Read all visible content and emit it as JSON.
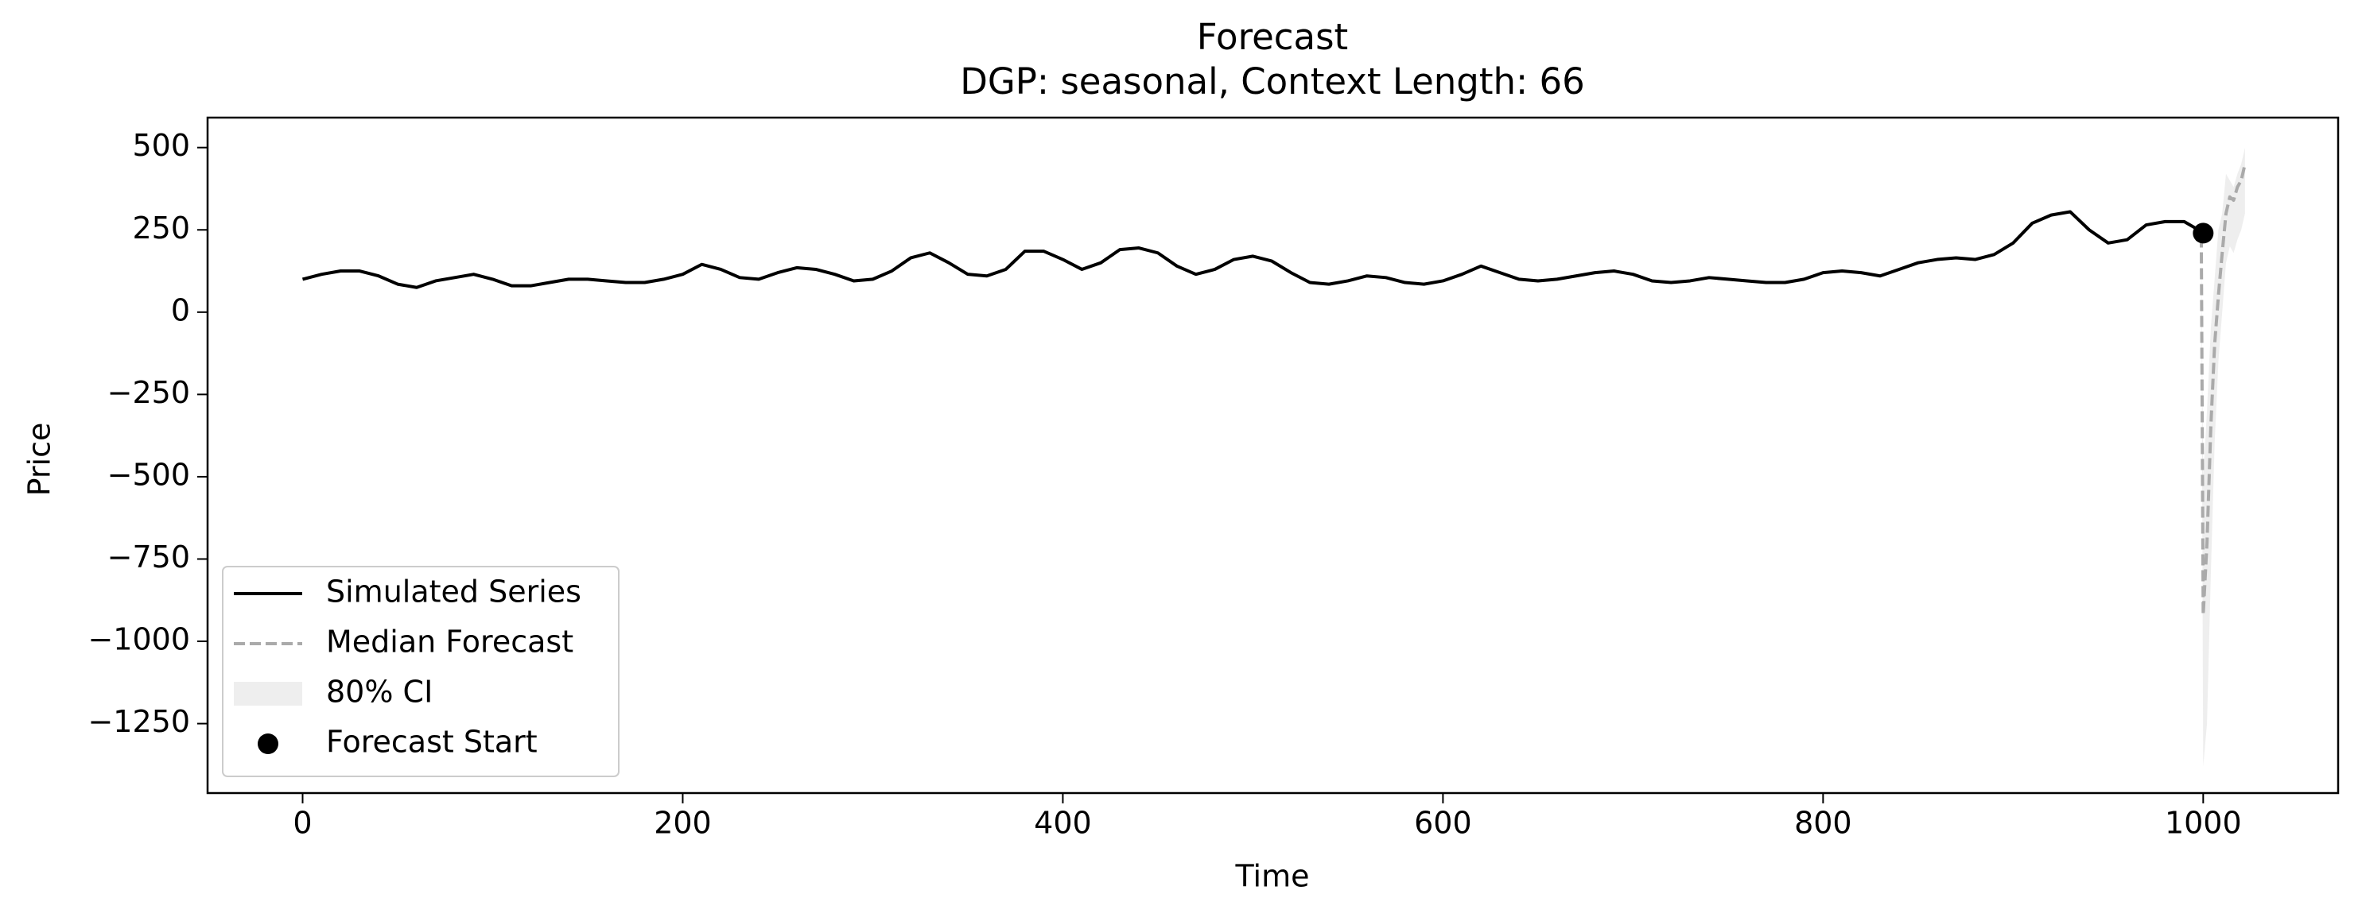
{
  "chart_data": {
    "type": "line",
    "title": "Forecast",
    "subtitle": "DGP: seasonal, Context Length: 66",
    "xlabel": "Time",
    "ylabel": "Price",
    "series": [
      {
        "name": "Simulated Series",
        "color": "#000000",
        "style": "solid",
        "x": [
          0,
          10,
          20,
          30,
          40,
          50,
          60,
          70,
          80,
          90,
          100,
          110,
          120,
          130,
          140,
          150,
          160,
          170,
          180,
          190,
          200,
          210,
          220,
          230,
          240,
          250,
          260,
          270,
          280,
          290,
          300,
          310,
          320,
          330,
          340,
          350,
          360,
          370,
          380,
          390,
          400,
          410,
          420,
          430,
          440,
          450,
          460,
          470,
          480,
          490,
          500,
          510,
          520,
          530,
          540,
          550,
          560,
          570,
          580,
          590,
          600,
          610,
          620,
          630,
          640,
          650,
          660,
          670,
          680,
          690,
          700,
          710,
          720,
          730,
          740,
          750,
          760,
          770,
          780,
          790,
          800,
          810,
          820,
          830,
          840,
          850,
          860,
          870,
          880,
          890,
          900,
          910,
          920,
          930,
          940,
          950,
          960,
          970,
          980,
          990,
          999
        ],
        "values": [
          100,
          115,
          125,
          125,
          110,
          85,
          75,
          95,
          105,
          115,
          100,
          80,
          80,
          90,
          100,
          100,
          95,
          90,
          90,
          100,
          115,
          145,
          130,
          105,
          100,
          120,
          135,
          130,
          115,
          95,
          100,
          125,
          165,
          180,
          150,
          115,
          110,
          130,
          185,
          185,
          160,
          130,
          150,
          190,
          195,
          180,
          140,
          115,
          130,
          160,
          170,
          155,
          120,
          90,
          85,
          95,
          110,
          105,
          90,
          85,
          95,
          115,
          140,
          120,
          100,
          95,
          100,
          110,
          120,
          125,
          115,
          95,
          90,
          95,
          105,
          100,
          95,
          90,
          90,
          100,
          120,
          125,
          120,
          110,
          130,
          150,
          160,
          165,
          160,
          175,
          210,
          270,
          295,
          305,
          250,
          210,
          220,
          265,
          275,
          275,
          245
        ]
      },
      {
        "name": "Median Forecast",
        "color": "#aaaaaa",
        "style": "dashed",
        "x": [
          999,
          1000,
          1002,
          1004,
          1006,
          1008,
          1010,
          1012,
          1014,
          1016,
          1018,
          1020,
          1022
        ],
        "values": [
          230,
          -920,
          -700,
          -350,
          -100,
          50,
          180,
          300,
          350,
          340,
          380,
          400,
          450
        ]
      }
    ],
    "band": {
      "name": "80% CI",
      "color": "#dddddd",
      "x": [
        999,
        1000,
        1002,
        1004,
        1006,
        1008,
        1010,
        1012,
        1014,
        1016,
        1018,
        1020,
        1022
      ],
      "lower": [
        230,
        -1380,
        -1250,
        -800,
        -400,
        -150,
        0,
        150,
        200,
        180,
        220,
        250,
        300
      ],
      "upper": [
        230,
        -500,
        -300,
        -50,
        100,
        250,
        300,
        420,
        400,
        380,
        420,
        450,
        500
      ]
    },
    "point": {
      "name": "Forecast Start",
      "color": "#000000",
      "x": 1000,
      "y": 240
    },
    "xlim": [
      -50,
      1071
    ],
    "ylim": [
      -1461,
      591
    ],
    "xticks": [
      0,
      200,
      400,
      600,
      800,
      1000
    ],
    "yticks": [
      {
        "value": -1250,
        "label": "−1250"
      },
      {
        "value": -1000,
        "label": "−1000"
      },
      {
        "value": -750,
        "label": "−750"
      },
      {
        "value": -500,
        "label": "−500"
      },
      {
        "value": -250,
        "label": "−250"
      },
      0,
      250,
      500
    ],
    "legend": "lower left"
  }
}
